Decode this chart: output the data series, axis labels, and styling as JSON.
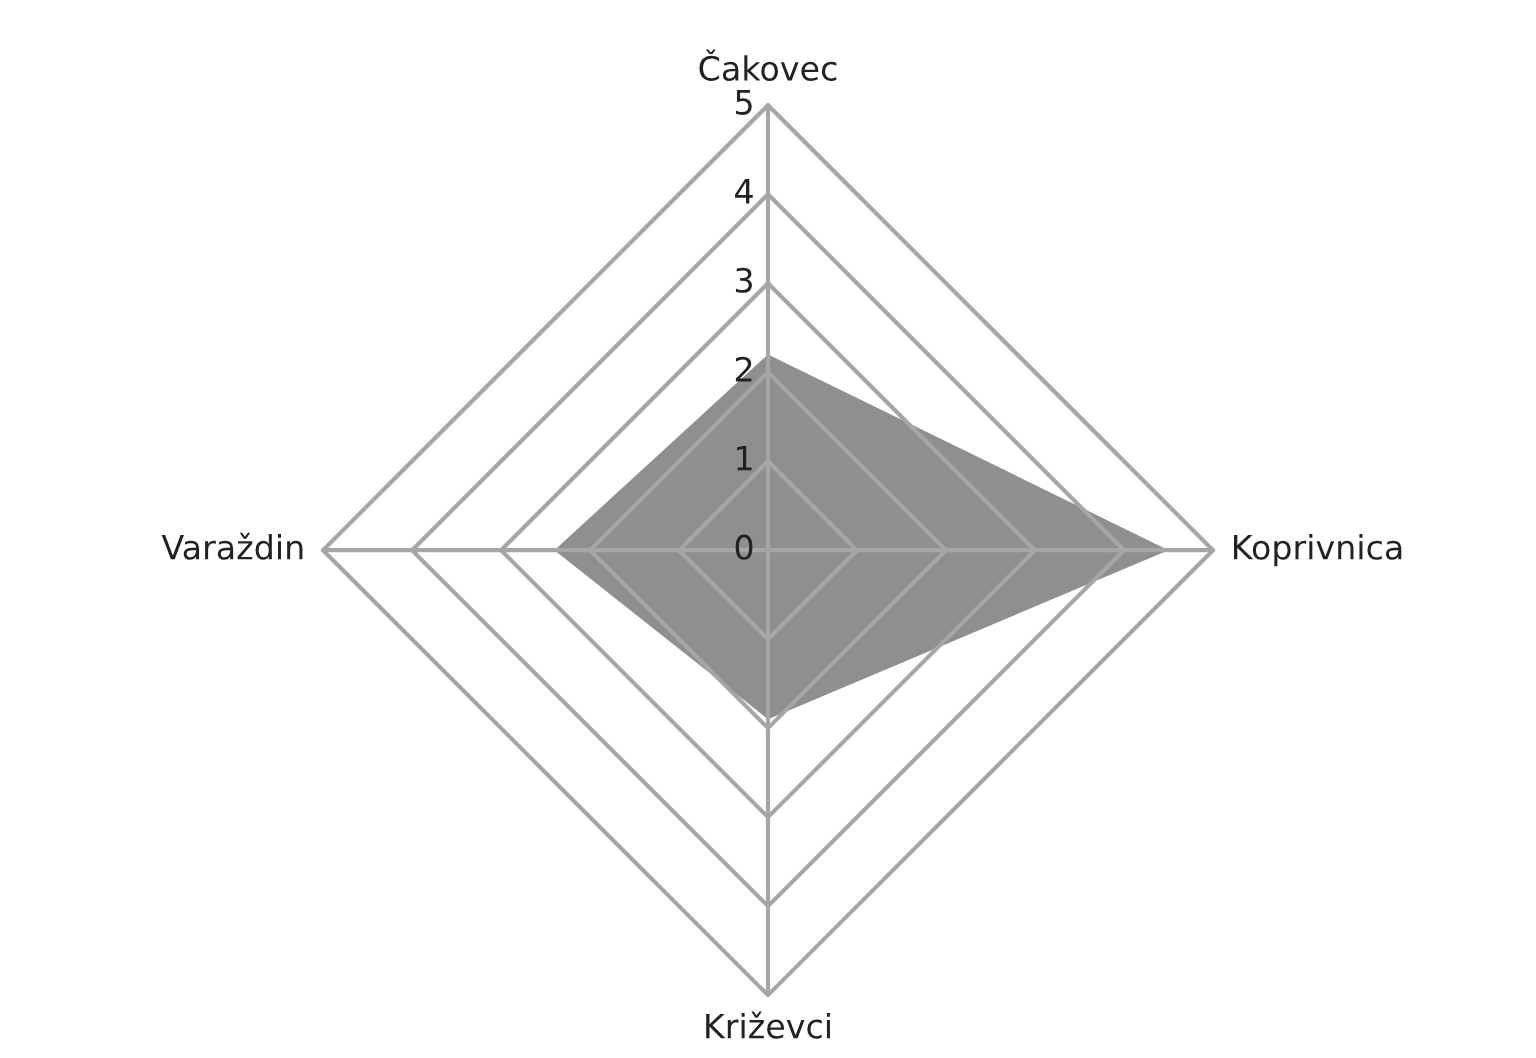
{
  "chart_data": {
    "type": "radar",
    "categories": [
      "Čakovec",
      "Koprivnica",
      "Križevci",
      "Varaždin"
    ],
    "series": [
      {
        "color": "#8f8f8f",
        "values": [
          2.2,
          4.5,
          1.9,
          2.4
        ]
      }
    ],
    "ylim": [
      0,
      5
    ],
    "yticks": [
      0,
      1,
      2,
      3,
      4,
      5
    ],
    "grid": true
  }
}
